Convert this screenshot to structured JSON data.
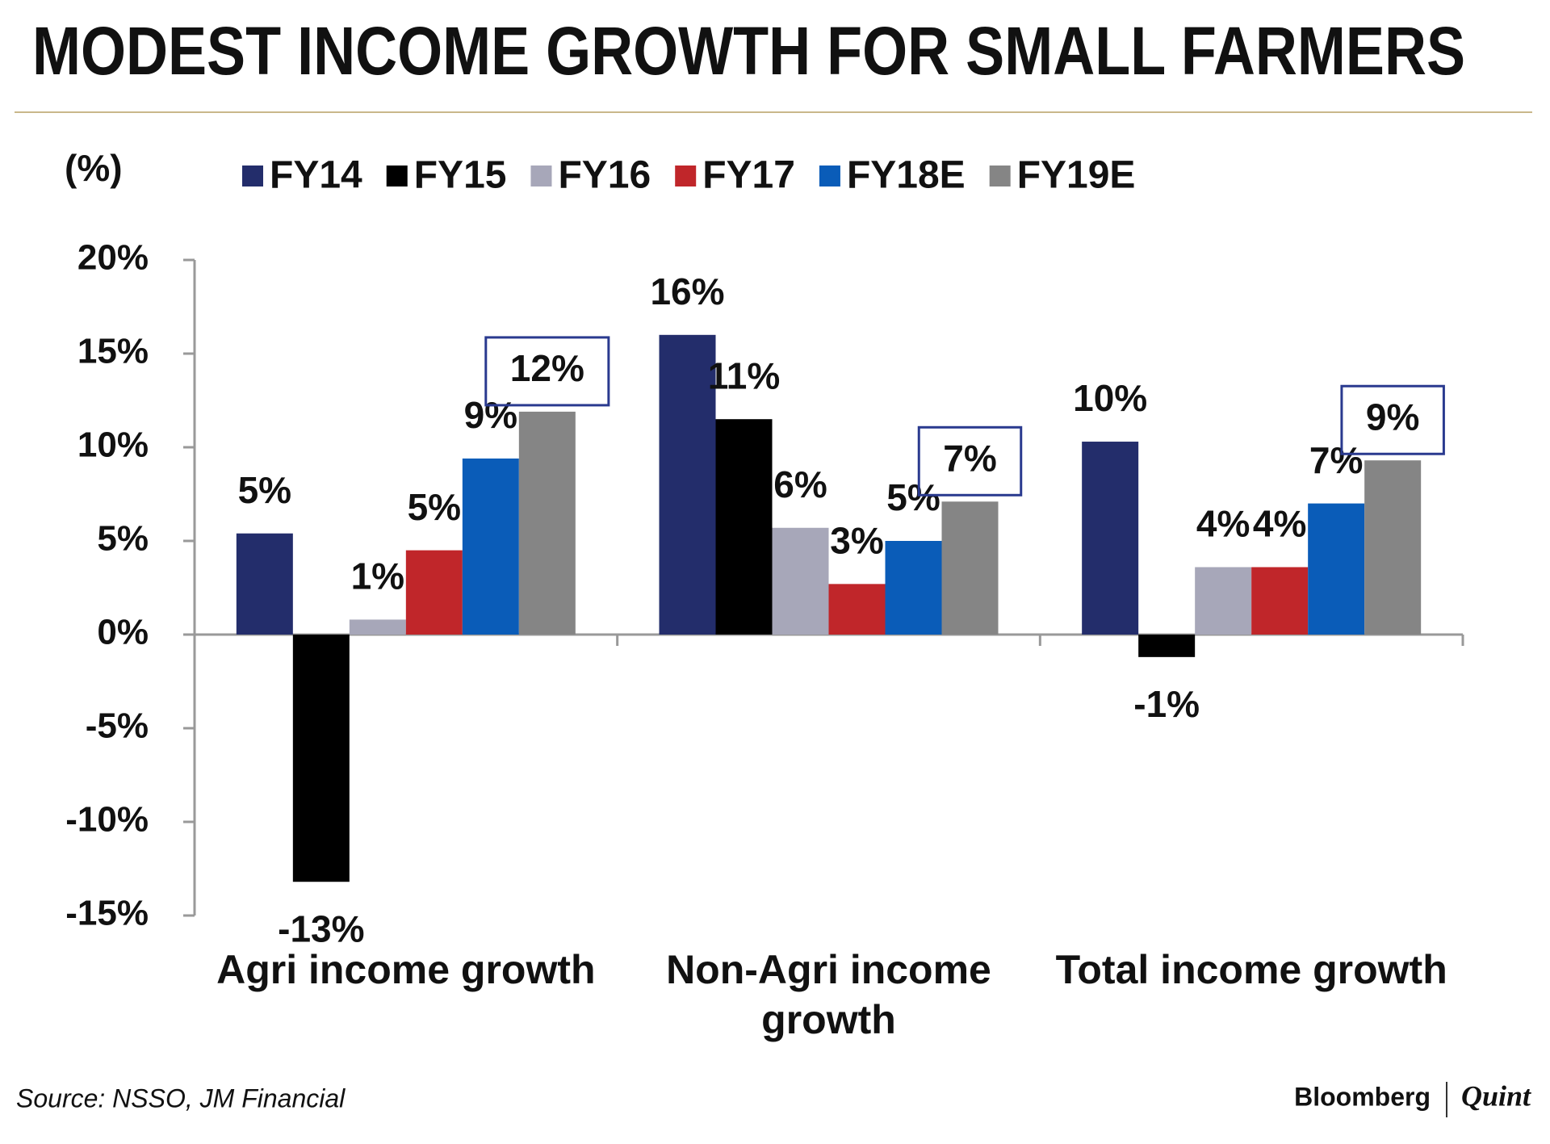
{
  "chart_data": {
    "type": "bar",
    "title": "MODEST INCOME GROWTH FOR SMALL FARMERS",
    "y_label": "(%)",
    "categories": [
      "Agri income growth",
      "Non-Agri income growth",
      "Total income growth"
    ],
    "series": [
      {
        "name": "FY14",
        "color": "#232d6b",
        "values": [
          5.4,
          16.0,
          10.3
        ],
        "value_labels": [
          "5%",
          "16%",
          "10%"
        ]
      },
      {
        "name": "FY15",
        "color": "#000000",
        "values": [
          -13.2,
          11.5,
          -1.2
        ],
        "value_labels": [
          "-13%",
          "11%",
          "-1%"
        ]
      },
      {
        "name": "FY16",
        "color": "#a7a7b9",
        "values": [
          0.8,
          5.7,
          3.6
        ],
        "value_labels": [
          "1%",
          "6%",
          "4%"
        ]
      },
      {
        "name": "FY17",
        "color": "#c0262a",
        "values": [
          4.5,
          2.7,
          3.6
        ],
        "value_labels": [
          "5%",
          "3%",
          "4%"
        ]
      },
      {
        "name": "FY18E",
        "color": "#0a5cb8",
        "values": [
          9.4,
          5.0,
          7.0
        ],
        "value_labels": [
          "9%",
          "5%",
          "7%"
        ]
      },
      {
        "name": "FY19E",
        "color": "#858585",
        "values": [
          11.9,
          7.1,
          9.3
        ],
        "value_labels": [
          "12%",
          "7%",
          "9%"
        ]
      }
    ],
    "ylim": [
      -15,
      20
    ],
    "yticks": [
      {
        "value": -15,
        "label": "-15%"
      },
      {
        "value": -10,
        "label": "-10%"
      },
      {
        "value": -5,
        "label": "-5%"
      },
      {
        "value": 0,
        "label": "0%"
      },
      {
        "value": 5,
        "label": "5%"
      },
      {
        "value": 10,
        "label": "10%"
      },
      {
        "value": 15,
        "label": "15%"
      },
      {
        "value": 20,
        "label": "20%"
      }
    ],
    "source": "Source: NSSO, JM Financial",
    "brand": [
      "Bloomberg",
      "Quint"
    ]
  }
}
